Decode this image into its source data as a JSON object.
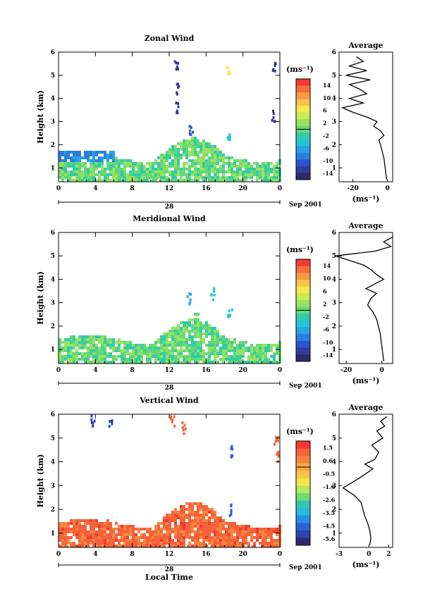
{
  "figure": {
    "date_label": "Sep 2001",
    "day_label": "28",
    "bottom_xlabel": "Local Time",
    "avg_xunit": "(ms⁻¹)",
    "colorbar_unit": "(ms⁻¹)"
  },
  "chart_data": [
    {
      "type": "heatmap",
      "title": "Zonal Wind",
      "ylabel": "Height (km)",
      "xlabel": "Local Time",
      "xticks": [
        "0",
        "4",
        "8",
        "12",
        "16",
        "20",
        "0"
      ],
      "yticks": [
        "1",
        "2",
        "3",
        "4",
        "5",
        "6"
      ],
      "xlim": [
        0,
        24
      ],
      "ylim": [
        0.4,
        6.0
      ],
      "colorbar": {
        "unit": "(ms⁻¹)",
        "ticks": [
          "14",
          "10",
          "6",
          "2",
          "-2",
          "-6",
          "-10",
          "-14"
        ],
        "range": [
          -16,
          16
        ]
      },
      "average_profile": {
        "title": "Average",
        "xlabel": "(ms⁻¹)",
        "xticks": [
          "-20",
          "0"
        ],
        "xlim": [
          -28,
          3
        ],
        "ylim": [
          0.4,
          6.0
        ],
        "height_km": [
          0.5,
          0.8,
          1.1,
          1.4,
          1.7,
          2.0,
          2.2,
          2.4,
          2.6,
          2.8,
          3.0,
          3.2,
          3.4,
          3.6,
          3.8,
          4.0,
          4.2,
          4.4,
          4.6,
          4.8,
          5.0,
          5.2,
          5.4,
          5.6,
          5.8
        ],
        "wind_ms": [
          -0.5,
          -1,
          -1.5,
          -2,
          -3,
          -4,
          -5,
          -2,
          -4,
          -8,
          -6,
          -12,
          -20,
          -26,
          -14,
          -22,
          -12,
          -16,
          -22,
          -10,
          -24,
          -12,
          -22,
          -14,
          -18
        ]
      },
      "data_summary": {
        "boundary_layer_top_km": 1.5,
        "boundary_layer_color_ms": [
          -4,
          4
        ],
        "upper_layer_color_ms": [
          -12,
          -8
        ]
      }
    },
    {
      "type": "heatmap",
      "title": "Meridional Wind",
      "ylabel": "Height (km)",
      "xlabel": "",
      "xticks": [
        "0",
        "4",
        "8",
        "12",
        "16",
        "20",
        "0"
      ],
      "yticks": [
        "1",
        "2",
        "3",
        "4",
        "5",
        "6"
      ],
      "xlim": [
        0,
        24
      ],
      "ylim": [
        0.4,
        6.0
      ],
      "colorbar": {
        "unit": "(ms⁻¹)",
        "ticks": [
          "14",
          "10",
          "6",
          "2",
          "-2",
          "-6",
          "-10",
          "-14"
        ],
        "range": [
          -16,
          16
        ]
      },
      "average_profile": {
        "title": "Average",
        "xlabel": "(ms⁻¹)",
        "xticks": [
          "-20",
          "0"
        ],
        "xlim": [
          -24,
          6
        ],
        "ylim": [
          0.4,
          6.0
        ],
        "height_km": [
          0.5,
          0.8,
          1.1,
          1.4,
          1.7,
          2.0,
          2.3,
          2.6,
          2.9,
          3.2,
          3.4,
          3.6,
          3.8,
          4.0,
          4.2,
          4.4,
          4.6,
          4.8,
          5.0,
          5.2,
          5.4,
          5.6,
          5.8
        ],
        "wind_ms": [
          1,
          0.5,
          0,
          -0.5,
          -1,
          -2,
          -3,
          -5,
          -8,
          -6,
          -3,
          -9,
          -4,
          1,
          -3,
          -6,
          -10,
          -18,
          -26,
          -4,
          5,
          1,
          6
        ]
      },
      "data_summary": {
        "boundary_layer_top_km": 1.5,
        "boundary_layer_color_ms": [
          -4,
          4
        ]
      }
    },
    {
      "type": "heatmap",
      "title": "Vertical Wind",
      "ylabel": "Height (km)",
      "xlabel": "Local Time",
      "xticks": [
        "0",
        "4",
        "8",
        "12",
        "16",
        "20",
        "0"
      ],
      "yticks": [
        "1",
        "2",
        "3",
        "4",
        "5",
        "6"
      ],
      "xlim": [
        0,
        24
      ],
      "ylim": [
        0.4,
        6.0
      ],
      "colorbar": {
        "unit": "(ms⁻¹)",
        "ticks": [
          "1.5",
          "0.6",
          "-0.5",
          "-1.6",
          "-2.6",
          "-3.5",
          "-4.5",
          "-5.6"
        ],
        "range": [
          -6,
          2
        ]
      },
      "average_profile": {
        "title": "Average",
        "xlabel": "(ms⁻¹)",
        "xticks": [
          "-3",
          "0",
          "2"
        ],
        "xlim": [
          -3,
          2.4
        ],
        "ylim": [
          0.4,
          6.0
        ],
        "height_km": [
          0.5,
          0.8,
          1.1,
          1.4,
          1.7,
          2.0,
          2.3,
          2.6,
          2.9,
          3.1,
          3.3,
          3.5,
          3.7,
          3.9,
          4.1,
          4.4,
          4.7,
          5.0,
          5.3,
          5.5,
          5.7,
          5.9
        ],
        "wind_ms": [
          0.1,
          0.2,
          0.1,
          -0.1,
          -0.4,
          -0.6,
          -0.8,
          -1.5,
          -2.6,
          -1.8,
          -1.0,
          -0.3,
          0.4,
          -0.4,
          0.6,
          1.0,
          0.3,
          1.4,
          0.8,
          1.6,
          1.2,
          1.8
        ]
      },
      "data_summary": {
        "boundary_layer_top_km": 1.5,
        "boundary_layer_color_ms": [
          0.6,
          1.5
        ]
      }
    }
  ]
}
